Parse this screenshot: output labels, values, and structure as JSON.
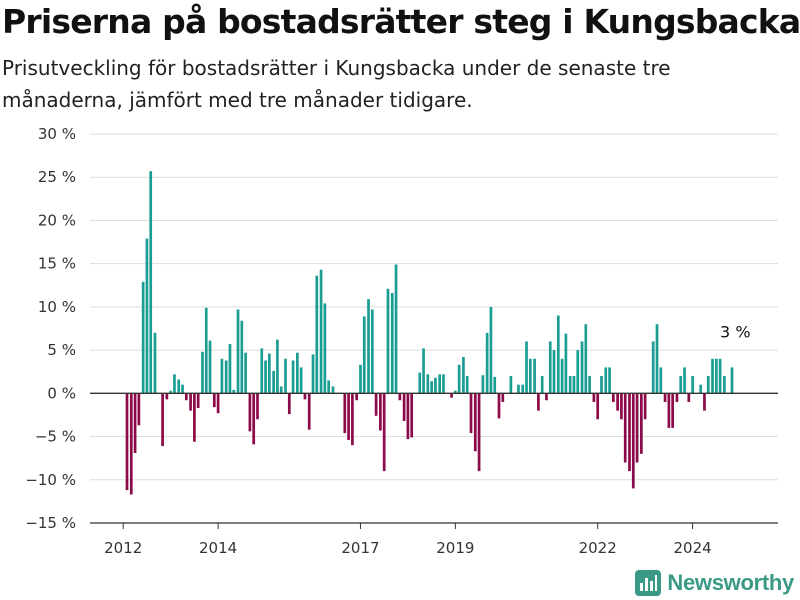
{
  "title": "Priserna på bostadsrätter steg i Kungsbacka",
  "subtitle": "Prisutveckling för bostadsrätter i Kungsbacka under de senaste tre månaderna, jämfört med tre månader tidigare.",
  "brand": "Newsworthy",
  "colors": {
    "positive": "#1a9d93",
    "negative": "#8c0a4a",
    "grid": "#dddddd",
    "axis": "#333333",
    "brand": "#3a9a86"
  },
  "chart_data": {
    "type": "bar",
    "ylim": [
      -15,
      30
    ],
    "yticks": [
      -15,
      -10,
      -5,
      0,
      5,
      10,
      15,
      20,
      25,
      30
    ],
    "ytick_labels": [
      "−15 %",
      "−10 %",
      "−5 %",
      "0 %",
      "5 %",
      "10 %",
      "15 %",
      "20 %",
      "25 %",
      "30 %"
    ],
    "xlim": [
      2011.3,
      2025.8
    ],
    "xticks": [
      2012,
      2014,
      2017,
      2019,
      2022,
      2024
    ],
    "xtick_labels": [
      "2012",
      "2014",
      "2017",
      "2019",
      "2022",
      "2024"
    ],
    "grid": true,
    "annotation": {
      "text": "3 %",
      "x": 2024.9,
      "y": 3
    },
    "series": [
      {
        "points": [
          [
            2012.08,
            -11.2
          ],
          [
            2012.17,
            -11.7
          ],
          [
            2012.25,
            -6.9
          ],
          [
            2012.33,
            -3.7
          ],
          [
            2012.42,
            12.9
          ],
          [
            2012.5,
            17.9
          ],
          [
            2012.58,
            25.7
          ],
          [
            2012.67,
            7.0
          ],
          [
            2012.75,
            0
          ],
          [
            2012.83,
            -6.1
          ],
          [
            2012.92,
            -0.7
          ],
          [
            2013.0,
            0.3
          ],
          [
            2013.08,
            2.2
          ],
          [
            2013.17,
            1.6
          ],
          [
            2013.25,
            1.0
          ],
          [
            2013.33,
            -0.8
          ],
          [
            2013.42,
            -2.0
          ],
          [
            2013.5,
            -5.6
          ],
          [
            2013.58,
            -1.7
          ],
          [
            2013.67,
            4.8
          ],
          [
            2013.75,
            9.9
          ],
          [
            2013.83,
            6.1
          ],
          [
            2013.92,
            -1.6
          ],
          [
            2014.0,
            -2.3
          ],
          [
            2014.08,
            4.0
          ],
          [
            2014.17,
            3.8
          ],
          [
            2014.25,
            5.7
          ],
          [
            2014.33,
            0.4
          ],
          [
            2014.42,
            9.7
          ],
          [
            2014.5,
            8.4
          ],
          [
            2014.58,
            4.7
          ],
          [
            2014.67,
            -4.4
          ],
          [
            2014.75,
            -5.9
          ],
          [
            2014.83,
            -3.0
          ],
          [
            2014.92,
            5.2
          ],
          [
            2015.0,
            3.8
          ],
          [
            2015.08,
            4.6
          ],
          [
            2015.17,
            2.6
          ],
          [
            2015.25,
            6.2
          ],
          [
            2015.33,
            0.8
          ],
          [
            2015.42,
            4.0
          ],
          [
            2015.5,
            -2.4
          ],
          [
            2015.58,
            3.8
          ],
          [
            2015.67,
            4.7
          ],
          [
            2015.75,
            3.0
          ],
          [
            2015.83,
            -0.7
          ],
          [
            2015.92,
            -4.2
          ],
          [
            2016.0,
            4.5
          ],
          [
            2016.08,
            13.6
          ],
          [
            2016.17,
            14.3
          ],
          [
            2016.25,
            10.4
          ],
          [
            2016.33,
            1.5
          ],
          [
            2016.42,
            0.8
          ],
          [
            2016.67,
            -4.6
          ],
          [
            2016.75,
            -5.4
          ],
          [
            2016.83,
            -6.0
          ],
          [
            2016.92,
            -0.8
          ],
          [
            2017.0,
            3.3
          ],
          [
            2017.08,
            8.9
          ],
          [
            2017.17,
            10.9
          ],
          [
            2017.25,
            9.7
          ],
          [
            2017.33,
            -2.6
          ],
          [
            2017.42,
            -4.3
          ],
          [
            2017.5,
            -9.0
          ],
          [
            2017.58,
            12.1
          ],
          [
            2017.67,
            11.6
          ],
          [
            2017.75,
            14.9
          ],
          [
            2017.83,
            -0.8
          ],
          [
            2017.92,
            -3.2
          ],
          [
            2018.0,
            -5.3
          ],
          [
            2018.08,
            -5.1
          ],
          [
            2018.25,
            2.4
          ],
          [
            2018.33,
            5.2
          ],
          [
            2018.42,
            2.2
          ],
          [
            2018.5,
            1.4
          ],
          [
            2018.58,
            1.8
          ],
          [
            2018.67,
            2.2
          ],
          [
            2018.75,
            2.2
          ],
          [
            2018.92,
            -0.5
          ],
          [
            2019.0,
            0.3
          ],
          [
            2019.08,
            3.3
          ],
          [
            2019.17,
            4.2
          ],
          [
            2019.25,
            2.0
          ],
          [
            2019.33,
            -4.6
          ],
          [
            2019.42,
            -6.7
          ],
          [
            2019.5,
            -9.0
          ],
          [
            2019.58,
            2.1
          ],
          [
            2019.67,
            7.0
          ],
          [
            2019.75,
            10.0
          ],
          [
            2019.83,
            1.9
          ],
          [
            2019.92,
            -2.9
          ],
          [
            2020.0,
            -1.0
          ],
          [
            2020.17,
            2.0
          ],
          [
            2020.33,
            1.0
          ],
          [
            2020.42,
            1.0
          ],
          [
            2020.5,
            6.0
          ],
          [
            2020.58,
            4.0
          ],
          [
            2020.67,
            4.0
          ],
          [
            2020.75,
            -2.0
          ],
          [
            2020.83,
            2.0
          ],
          [
            2020.92,
            -0.8
          ],
          [
            2021.0,
            6.0
          ],
          [
            2021.08,
            5.0
          ],
          [
            2021.17,
            9.0
          ],
          [
            2021.25,
            4.0
          ],
          [
            2021.33,
            6.9
          ],
          [
            2021.42,
            2.0
          ],
          [
            2021.5,
            2.0
          ],
          [
            2021.58,
            5.0
          ],
          [
            2021.67,
            6.0
          ],
          [
            2021.75,
            8.0
          ],
          [
            2021.83,
            2.0
          ],
          [
            2021.92,
            -1.0
          ],
          [
            2022.0,
            -3.0
          ],
          [
            2022.08,
            2.0
          ],
          [
            2022.17,
            3.0
          ],
          [
            2022.25,
            3.0
          ],
          [
            2022.33,
            -1.0
          ],
          [
            2022.42,
            -2.0
          ],
          [
            2022.5,
            -3.0
          ],
          [
            2022.58,
            -8.0
          ],
          [
            2022.67,
            -9.0
          ],
          [
            2022.75,
            -11.0
          ],
          [
            2022.83,
            -8.0
          ],
          [
            2022.92,
            -7.0
          ],
          [
            2023.0,
            -3.0
          ],
          [
            2023.17,
            6.0
          ],
          [
            2023.25,
            8.0
          ],
          [
            2023.33,
            3.0
          ],
          [
            2023.42,
            -1.0
          ],
          [
            2023.5,
            -4.0
          ],
          [
            2023.58,
            -4.0
          ],
          [
            2023.67,
            -1.0
          ],
          [
            2023.75,
            2.0
          ],
          [
            2023.83,
            3.0
          ],
          [
            2023.92,
            -1.0
          ],
          [
            2024.0,
            2.0
          ],
          [
            2024.17,
            1.0
          ],
          [
            2024.25,
            -2.0
          ],
          [
            2024.33,
            2.0
          ],
          [
            2024.42,
            4.0
          ],
          [
            2024.5,
            4.0
          ],
          [
            2024.58,
            4.0
          ],
          [
            2024.67,
            2.0
          ],
          [
            2024.83,
            3.0
          ]
        ]
      }
    ]
  }
}
